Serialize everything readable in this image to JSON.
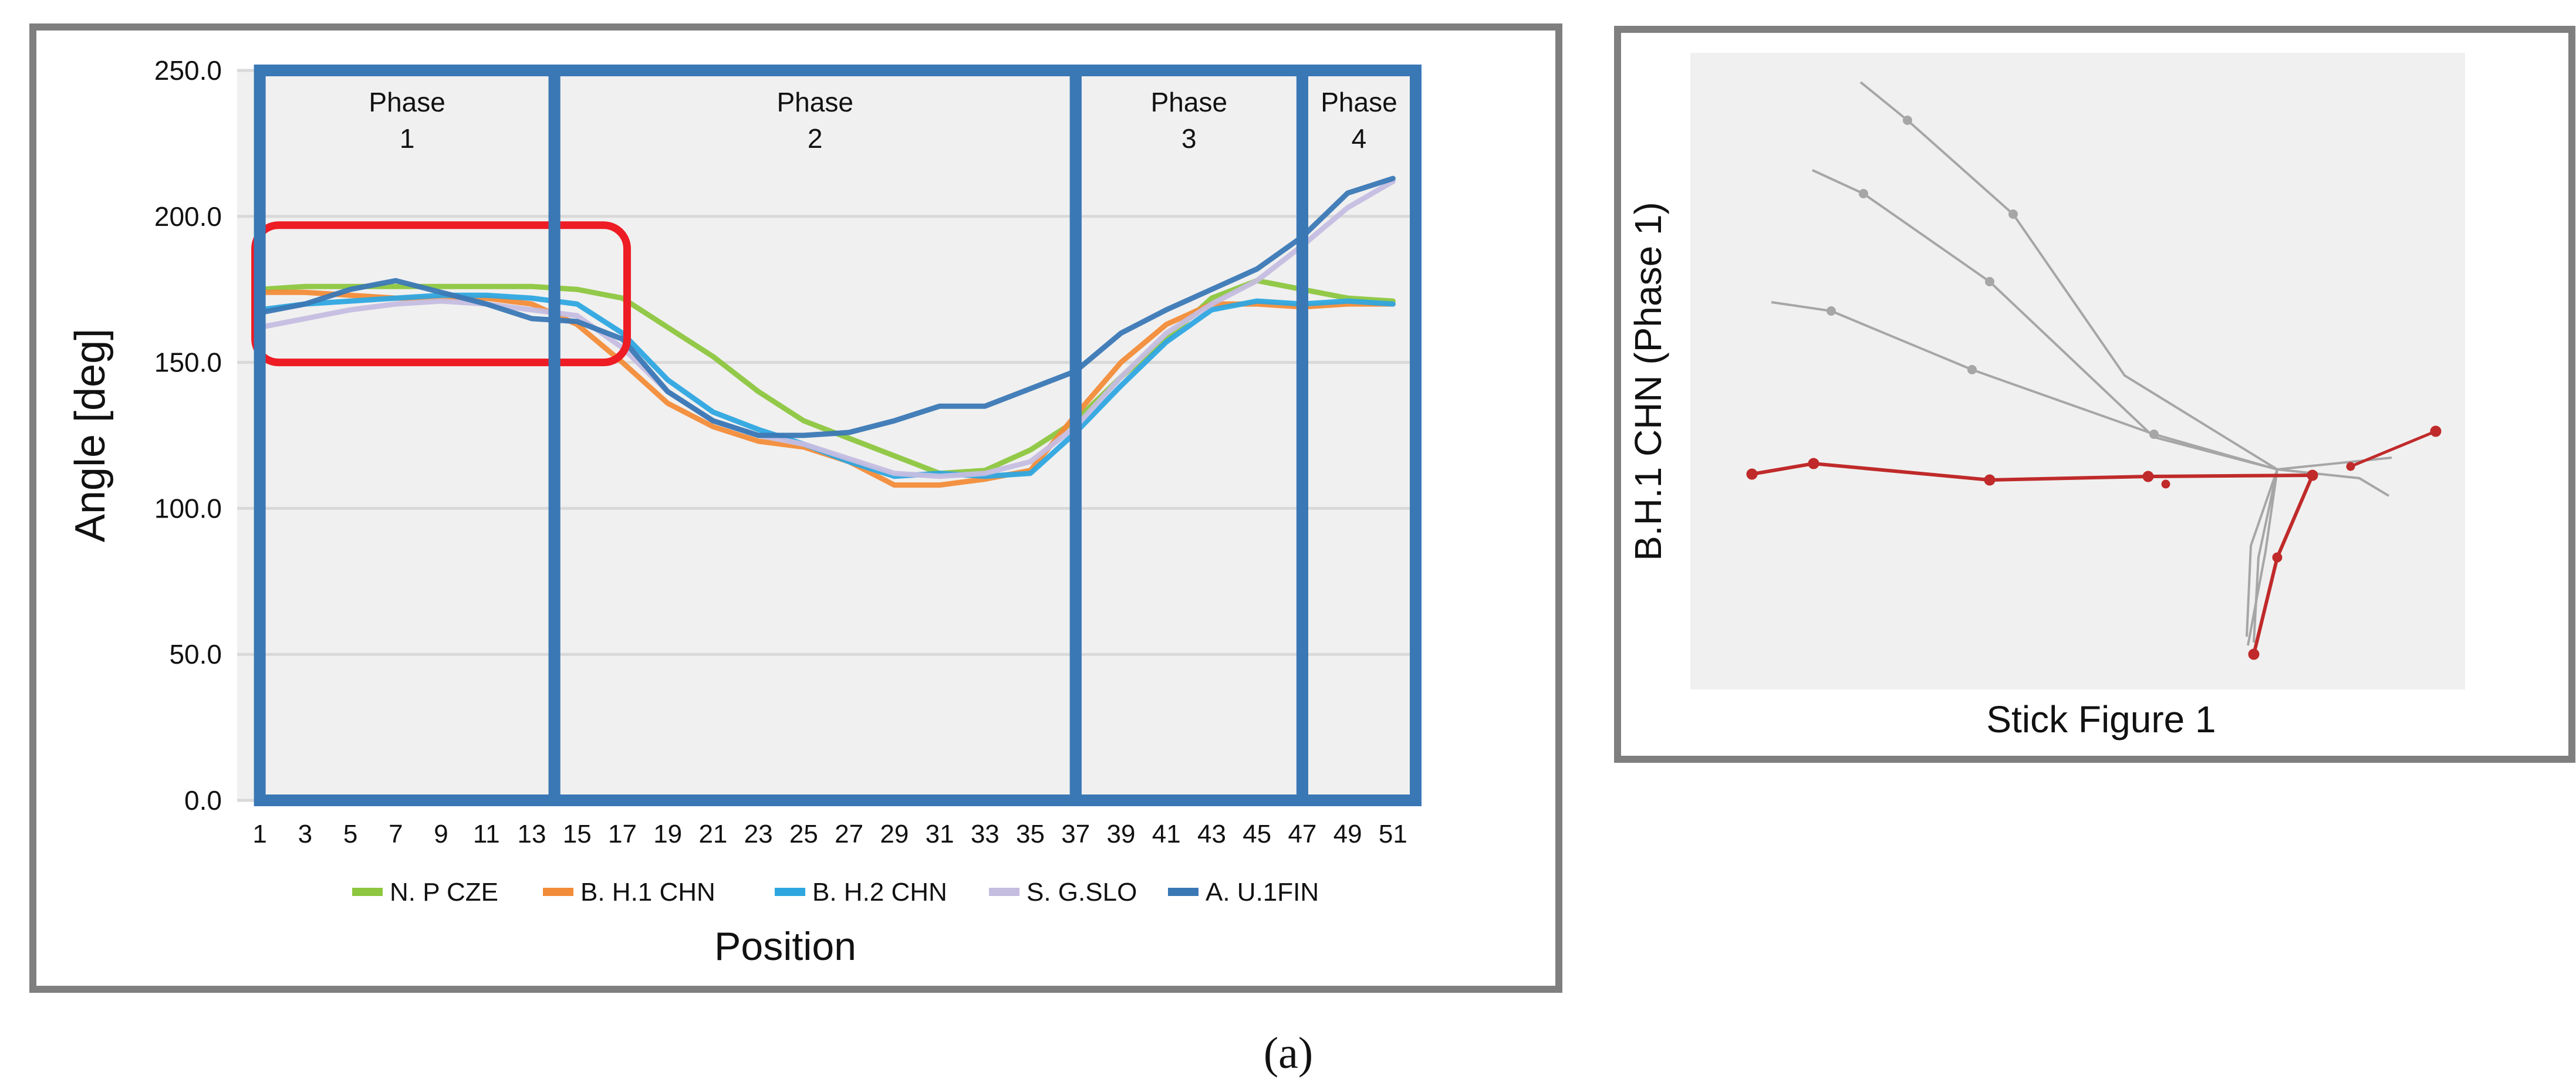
{
  "chart_data": [
    {
      "type": "line",
      "ylabel": "Angle [deg]",
      "xlabel": "Position",
      "ylim": [
        0,
        250
      ],
      "yticks": [
        "0.0",
        "50.0",
        "100.0",
        "150.0",
        "200.0",
        "250.0"
      ],
      "x": [
        1,
        3,
        5,
        7,
        9,
        11,
        13,
        15,
        17,
        19,
        21,
        23,
        25,
        27,
        29,
        31,
        33,
        35,
        37,
        39,
        41,
        43,
        45,
        47,
        49,
        51
      ],
      "xticks": [
        "1",
        "3",
        "5",
        "7",
        "9",
        "11",
        "13",
        "15",
        "17",
        "19",
        "21",
        "23",
        "25",
        "27",
        "29",
        "31",
        "33",
        "35",
        "37",
        "39",
        "41",
        "43",
        "45",
        "47",
        "49",
        "51"
      ],
      "legend_position": "bottom",
      "grid": true,
      "series": [
        {
          "name": "N. P CZE",
          "color": "#8dc63f",
          "values": [
            175,
            176,
            176,
            176,
            176,
            176,
            176,
            175,
            172,
            162,
            152,
            140,
            130,
            124,
            118,
            112,
            113,
            120,
            130,
            145,
            158,
            172,
            178,
            175,
            172,
            171
          ]
        },
        {
          "name": "B. H.1 CHN",
          "color": "#f28c38",
          "values": [
            174,
            174,
            173,
            172,
            172,
            172,
            170,
            163,
            150,
            136,
            128,
            123,
            121,
            116,
            108,
            108,
            110,
            113,
            132,
            150,
            163,
            170,
            170,
            169,
            170,
            170
          ]
        },
        {
          "name": "B. H.2 CHN",
          "color": "#2ea6e0",
          "values": [
            168,
            170,
            171,
            172,
            173,
            173,
            172,
            170,
            160,
            144,
            133,
            127,
            122,
            116,
            111,
            112,
            111,
            112,
            126,
            142,
            157,
            168,
            171,
            170,
            171,
            170
          ]
        },
        {
          "name": "S. G.SLO",
          "color": "#c5bde0",
          "values": [
            162,
            165,
            168,
            170,
            171,
            170,
            168,
            166,
            155,
            140,
            130,
            125,
            122,
            117,
            112,
            111,
            112,
            116,
            128,
            145,
            160,
            170,
            178,
            190,
            203,
            212
          ]
        },
        {
          "name": "A. U.1FIN",
          "color": "#3a78b5",
          "values": [
            167,
            170,
            175,
            178,
            174,
            170,
            165,
            164,
            158,
            140,
            130,
            125,
            125,
            126,
            130,
            135,
            135,
            141,
            147,
            160,
            168,
            175,
            182,
            193,
            208,
            213
          ]
        }
      ],
      "phases": [
        {
          "label": "Phase",
          "number": "1",
          "start_position": 1,
          "end_position": 14
        },
        {
          "label": "Phase",
          "number": "2",
          "start_position": 14,
          "end_position": 37
        },
        {
          "label": "Phase",
          "number": "3",
          "start_position": 37,
          "end_position": 47
        },
        {
          "label": "Phase",
          "number": "4",
          "start_position": 47,
          "end_position": 52
        }
      ],
      "highlight": {
        "color": "#ee1c24",
        "x_from": 1,
        "x_to": 17,
        "y_from": 150,
        "y_to": 197
      },
      "phase_border_color": "#3a78b5"
    },
    {
      "type": "stick-figure",
      "ylabel": "B.H.1 CHN (Phase 1)",
      "xlabel": "Stick Figure  1",
      "highlight_color": "#c02a2a",
      "ghost_color": "#a6a6a6"
    }
  ],
  "caption": "(a)"
}
